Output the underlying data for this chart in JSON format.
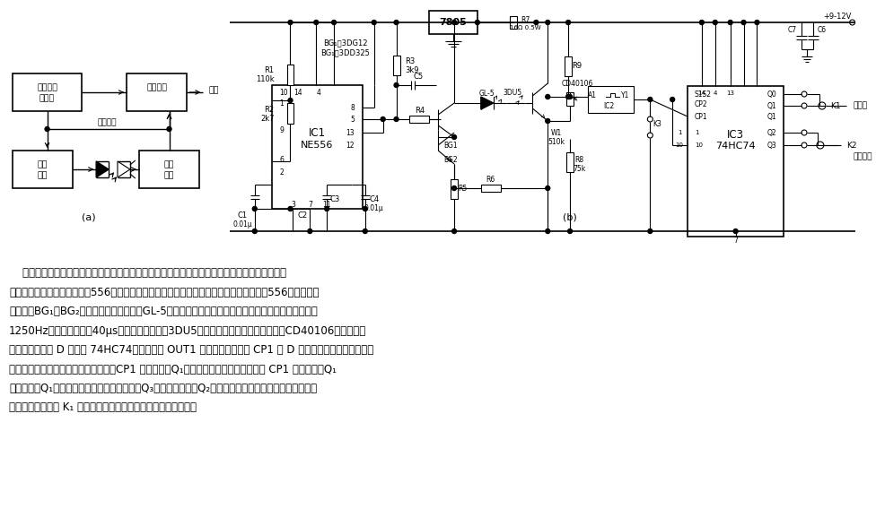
{
  "bg_color": "#ffffff",
  "fig_width": 9.76,
  "fig_height": 5.87,
  "dpi": 100,
  "desc": [
    "    红外光电开关　该电路由发端的调制脉冲发生器、驱动红外线发送器和收端的红外接收、整形放",
    "大、解调器组成。双时基电路556的一半接成多谐振荡器，输出脉冲触发接成单稳的另一半556，产生的调",
    "制脉冲经BG₁、BG₂放大，驱动发光二极管GL-5发出脉冲红外线波。图中参数多谐振荡器振荡频率约为",
    "1250Hz，单稳脉宽约为40μs。红外接收三极管3DU5完成光电转换，经施密特触发器CD40106放大整形。",
    "解调电路采用双 D 触发器 74HC74，利用发端 OUT1 同步信号作为时钟 CP1 和 D 触发器的延时触发，完成解",
    "调任务。发、收红外管之间无遥光时，CP1 的上升沿，Q₁端呢低电平；如果有遥光，则 CP1 的上升沿，Q₁",
    "呢高电平。Q₁动作一次，表示遥光一次。只要Q₃有正脉冲出现，Q₂便被触发，产生高电平输出，可作为报",
    "警信号，直到按压 K₁ 才解除。该电路工作可靠，抗干扰能力强。"
  ]
}
